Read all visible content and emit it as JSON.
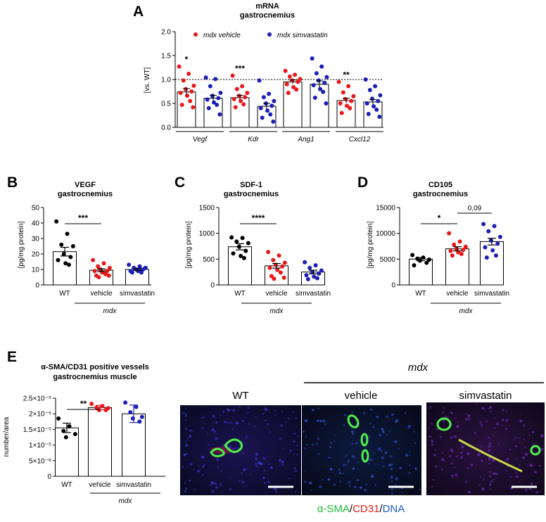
{
  "panel_a": {
    "letter": "A",
    "title_line1": "mRNA",
    "title_line2": "gastrocnemius",
    "ylabel": "[vs. WT]",
    "legend": [
      "mdx vehicle",
      "mdx simvastatin"
    ]
  },
  "panel_b": {
    "letter": "B",
    "title_line1": "VEGF",
    "title_line2": "gastrocnemius",
    "ylabel": "[pg/mg protein]",
    "group_label": "mdx"
  },
  "panel_c": {
    "letter": "C",
    "title_line1": "SDF-1",
    "title_line2": "gastrocnemius",
    "ylabel": "[pg/mg protein]",
    "group_label": "mdx"
  },
  "panel_d": {
    "letter": "D",
    "title_line1": "CD105",
    "title_line2": "gastrocnemius",
    "ylabel": "[pg/mg protein]",
    "group_label": "mdx"
  },
  "panel_e": {
    "letter": "E",
    "title_line1": "α-SMA/CD31 positive vessels",
    "title_line2": "gastrocnemius muscle",
    "ylabel": "number/area",
    "group_label": "mdx"
  },
  "micrographs": {
    "mdx_header": "mdx",
    "labels": [
      "WT",
      "vehicle",
      "simvastatin"
    ],
    "legend": [
      {
        "text": "α-SMA",
        "color": "#1fbf3a"
      },
      {
        "text": "/",
        "color": "#000000"
      },
      {
        "text": "CD31",
        "color": "#e0201b"
      },
      {
        "text": "/",
        "color": "#000000"
      },
      {
        "text": "DNA",
        "color": "#1f5fd0"
      }
    ]
  },
  "colors": {
    "vehicle": "#e8191b",
    "simvastatin": "#1c1fb5",
    "wt": "#000000"
  },
  "chart_data": [
    {
      "id": "A",
      "type": "bar",
      "categories": [
        "Vegf",
        "Kdr",
        "Ang1",
        "Cxcl12"
      ],
      "ylim": [
        0,
        2.0
      ],
      "yticks": [
        "0.0",
        "0.5",
        "1.0",
        "1.5",
        "2.0"
      ],
      "reference_line": 1.0,
      "significance": [
        "*",
        "***",
        "",
        "**"
      ],
      "series": [
        {
          "name": "mdx vehicle",
          "color": "#e8191b",
          "values": [
            0.74,
            0.62,
            0.95,
            0.56
          ],
          "sem": [
            0.07,
            0.05,
            0.04,
            0.05
          ],
          "points": [
            [
              1.27,
              1.12,
              0.98,
              0.87,
              0.8,
              0.75,
              0.72,
              0.66,
              0.55,
              0.47,
              0.42
            ],
            [
              1.08,
              0.86,
              0.8,
              0.72,
              0.66,
              0.63,
              0.59,
              0.55,
              0.48,
              0.42
            ],
            [
              1.18,
              1.1,
              1.06,
              1.01,
              0.98,
              0.95,
              0.9,
              0.84,
              0.79,
              0.72
            ],
            [
              0.95,
              0.86,
              0.73,
              0.65,
              0.59,
              0.55,
              0.5,
              0.45,
              0.4,
              0.3
            ]
          ]
        },
        {
          "name": "mdx simvastatin",
          "color": "#1c1fb5",
          "values": [
            0.61,
            0.44,
            0.9,
            0.53
          ],
          "sem": [
            0.06,
            0.06,
            0.07,
            0.05
          ],
          "points": [
            [
              1.04,
              1.01,
              0.86,
              0.72,
              0.66,
              0.61,
              0.58,
              0.52,
              0.47,
              0.4,
              0.27
            ],
            [
              0.98,
              0.7,
              0.63,
              0.55,
              0.5,
              0.45,
              0.4,
              0.35,
              0.27,
              0.2,
              0.12
            ],
            [
              1.44,
              1.27,
              1.13,
              1.05,
              0.98,
              0.93,
              0.88,
              0.8,
              0.74,
              0.62,
              0.5
            ],
            [
              1.0,
              0.86,
              0.78,
              0.67,
              0.6,
              0.55,
              0.5,
              0.44,
              0.37,
              0.28,
              0.22
            ]
          ]
        }
      ]
    },
    {
      "id": "B",
      "type": "bar",
      "categories": [
        "WT",
        "vehicle",
        "simvastatin"
      ],
      "ylim": [
        0,
        50
      ],
      "yticks": [
        "0",
        "10",
        "20",
        "30",
        "40",
        "50"
      ],
      "values": [
        21.5,
        9.5,
        10.0
      ],
      "sem": [
        2.8,
        0.9,
        0.6
      ],
      "colors": [
        "#000000",
        "#e8191b",
        "#1c1fb5"
      ],
      "points": [
        [
          41,
          33,
          26,
          25,
          20,
          18,
          16,
          14,
          13
        ],
        [
          16,
          14,
          12,
          11,
          10,
          9,
          9,
          8,
          7,
          6,
          6,
          5
        ],
        [
          13,
          12,
          11,
          11,
          10,
          10,
          9,
          9,
          8,
          8
        ]
      ],
      "significance": [
        {
          "from": 0,
          "to": 1,
          "label": "***"
        }
      ]
    },
    {
      "id": "C",
      "type": "bar",
      "categories": [
        "WT",
        "vehicle",
        "simvastatin"
      ],
      "ylim": [
        0,
        1500
      ],
      "yticks": [
        "0",
        "500",
        "1000",
        "1500"
      ],
      "values": [
        740,
        370,
        250
      ],
      "sem": [
        60,
        45,
        35
      ],
      "colors": [
        "#000000",
        "#e8191b",
        "#1c1fb5"
      ],
      "points": [
        [
          920,
          910,
          840,
          810,
          740,
          660,
          610,
          560,
          520
        ],
        [
          640,
          570,
          480,
          430,
          390,
          360,
          330,
          290,
          240,
          170,
          140,
          120
        ],
        [
          440,
          380,
          330,
          280,
          250,
          220,
          190,
          160,
          130,
          110
        ]
      ],
      "significance": [
        {
          "from": 0,
          "to": 1,
          "label": "****"
        }
      ]
    },
    {
      "id": "D",
      "type": "bar",
      "categories": [
        "WT",
        "vehicle",
        "simvastatin"
      ],
      "ylim": [
        0,
        15000
      ],
      "yticks": [
        "0",
        "5000",
        "10000",
        "15000"
      ],
      "values": [
        5000,
        7000,
        8400
      ],
      "sem": [
        300,
        400,
        650
      ],
      "colors": [
        "#000000",
        "#e8191b",
        "#1c1fb5"
      ],
      "points": [
        [
          5800,
          5300,
          5100,
          4900,
          4700,
          4300,
          3800
        ],
        [
          10000,
          8400,
          7800,
          7400,
          7000,
          6800,
          6600,
          6300,
          6000,
          5700
        ],
        [
          11800,
          11400,
          10400,
          9300,
          8600,
          8000,
          7300,
          6700,
          5700,
          5300
        ]
      ],
      "significance": [
        {
          "from": 0,
          "to": 1,
          "label": "*"
        },
        {
          "from": 1,
          "to": 2,
          "label": "0,09"
        }
      ]
    },
    {
      "id": "E",
      "type": "bar",
      "categories": [
        "WT",
        "vehicle",
        "simvastatin"
      ],
      "ylim": [
        0,
        2.5e-05
      ],
      "yticks": [
        "0",
        "5×10⁻⁶",
        "1×10⁻⁵",
        "1.5×10⁻⁵",
        "2×10⁻⁵",
        "2.5×10⁻⁵"
      ],
      "values": [
        1.55e-05,
        2.2e-05,
        2e-05
      ],
      "sd": [
        1.5e-06,
        7e-07,
        2.8e-06
      ],
      "colors": [
        "#000000",
        "#e8191b",
        "#1c1fb5"
      ],
      "points": [
        [
          1.85e-05,
          1.6e-05,
          1.45e-05,
          1.35e-05,
          1.25e-05
        ],
        [
          2.32e-05,
          2.25e-05,
          2.2e-05,
          2.18e-05,
          2.12e-05,
          2.12e-05
        ],
        [
          2.36e-05,
          2.22e-05,
          2.05e-05,
          1.9e-05,
          1.85e-05,
          1.75e-05
        ]
      ],
      "significance": [
        {
          "from": 0,
          "to": 1,
          "label": "**"
        }
      ]
    }
  ]
}
